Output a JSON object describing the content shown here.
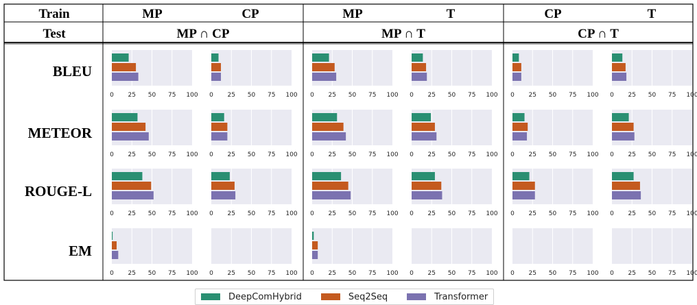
{
  "header": {
    "train_label": "Train",
    "test_label": "Test",
    "groups": [
      {
        "train": [
          "MP",
          "CP"
        ],
        "test": "MP ∩ CP"
      },
      {
        "train": [
          "MP",
          "T"
        ],
        "test": "MP ∩ T"
      },
      {
        "train": [
          "CP",
          "T"
        ],
        "test": "CP ∩ T"
      }
    ]
  },
  "colors": {
    "DeepComHybrid": "#2a8f72",
    "Seq2Seq": "#c45a1f",
    "Transformer": "#7b72b0",
    "panel_bg": "#eaeaf2"
  },
  "legend": [
    {
      "name": "DeepComHybrid",
      "color": "#2a8f72"
    },
    {
      "name": "Seq2Seq",
      "color": "#c45a1f"
    },
    {
      "name": "Transformer",
      "color": "#7b72b0"
    }
  ],
  "chart_data": {
    "type": "bar",
    "orientation": "horizontal",
    "metrics": [
      "BLEU",
      "METEOR",
      "ROUGE-L",
      "EM"
    ],
    "series_names": [
      "DeepComHybrid",
      "Seq2Seq",
      "Transformer"
    ],
    "xlim": [
      0,
      100
    ],
    "xticks": [
      0,
      25,
      50,
      75,
      100
    ],
    "grid": true,
    "legend_position": "bottom-center",
    "panels": [
      {
        "train": "MP",
        "test": "MP ∩ CP",
        "values": [
          [
            21,
            30,
            33
          ],
          [
            32,
            42,
            46
          ],
          [
            38,
            49,
            52
          ],
          [
            1,
            6,
            8
          ]
        ]
      },
      {
        "train": "CP",
        "test": "MP ∩ CP",
        "values": [
          [
            9,
            12,
            12
          ],
          [
            16,
            20,
            20
          ],
          [
            23,
            29,
            30
          ],
          [
            0,
            0,
            0
          ]
        ]
      },
      {
        "train": "MP",
        "test": "MP ∩ T",
        "values": [
          [
            21,
            28,
            30
          ],
          [
            31,
            39,
            42
          ],
          [
            36,
            45,
            48
          ],
          [
            2,
            7,
            7
          ]
        ]
      },
      {
        "train": "T",
        "test": "MP ∩ T",
        "values": [
          [
            14,
            18,
            19
          ],
          [
            24,
            29,
            31
          ],
          [
            29,
            37,
            38
          ],
          [
            0,
            0,
            0
          ]
        ]
      },
      {
        "train": "CP",
        "test": "CP ∩ T",
        "values": [
          [
            8,
            11,
            11
          ],
          [
            15,
            19,
            18
          ],
          [
            21,
            28,
            28
          ],
          [
            0,
            0,
            0
          ]
        ]
      },
      {
        "train": "T",
        "test": "CP ∩ T",
        "values": [
          [
            13,
            17,
            18
          ],
          [
            21,
            27,
            28
          ],
          [
            27,
            35,
            36
          ],
          [
            0,
            0,
            0
          ]
        ]
      }
    ]
  }
}
